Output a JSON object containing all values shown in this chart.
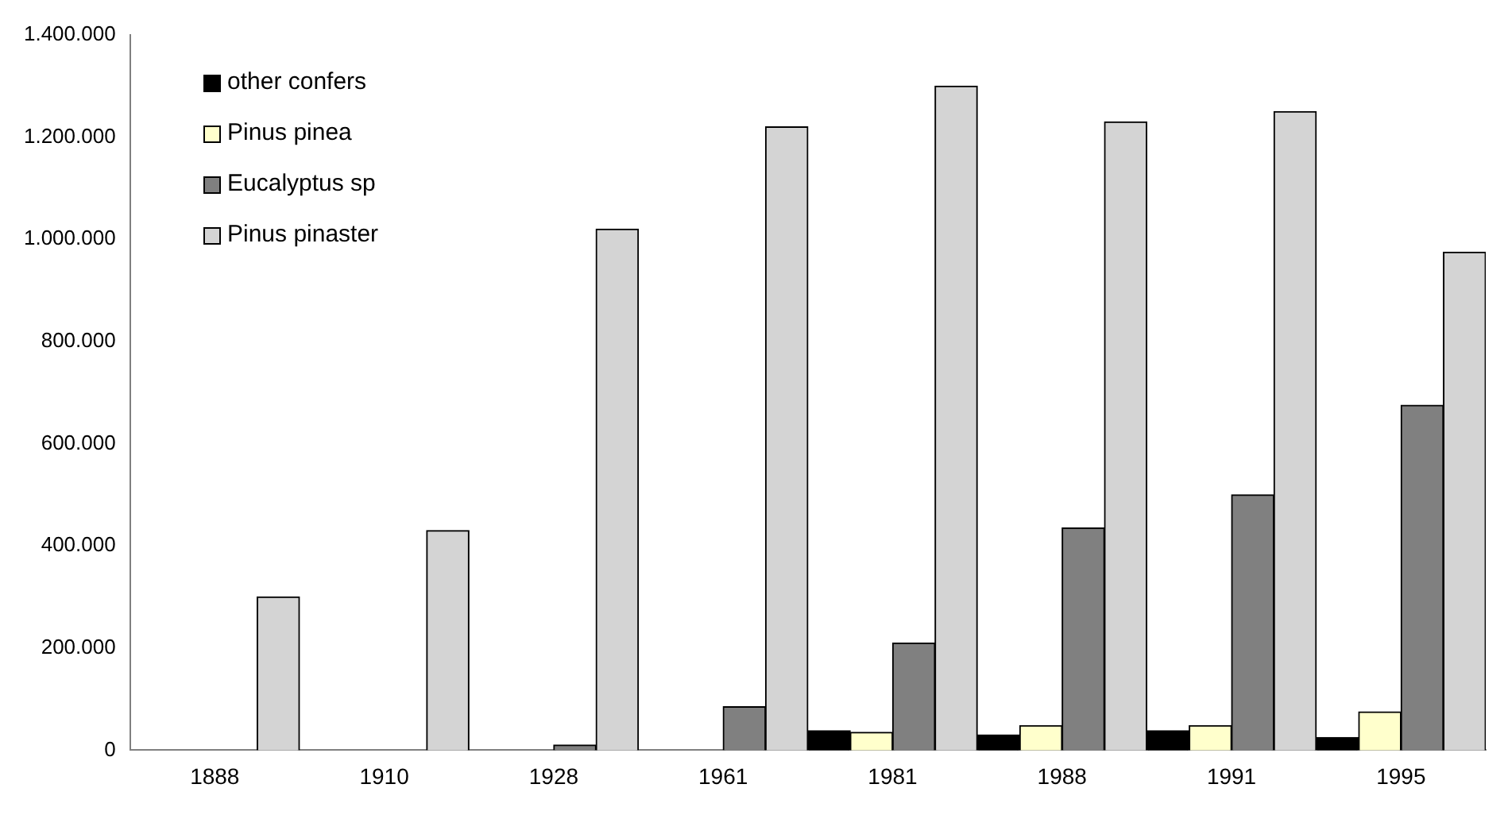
{
  "chart_data": {
    "type": "bar",
    "categories": [
      "1888",
      "1910",
      "1928",
      "1961",
      "1981",
      "1988",
      "1991",
      "1995"
    ],
    "series": [
      {
        "name": "other confers",
        "color": "#000000",
        "values": [
          null,
          null,
          null,
          null,
          38000,
          30000,
          38000,
          25000
        ]
      },
      {
        "name": "Pinus pinea",
        "color": "#ffffcc",
        "values": [
          null,
          null,
          null,
          null,
          35000,
          48000,
          48000,
          75000
        ]
      },
      {
        "name": "Eucalyptus sp",
        "color": "#808080",
        "values": [
          null,
          null,
          10000,
          85000,
          210000,
          435000,
          500000,
          675000
        ]
      },
      {
        "name": "Pinus pinaster",
        "color": "#d4d4d4",
        "values": [
          300000,
          430000,
          1020000,
          1220000,
          1300000,
          1230000,
          1250000,
          975000
        ]
      }
    ],
    "ylim": [
      0,
      1400000
    ],
    "yticks": [
      {
        "value": 0,
        "label": "0"
      },
      {
        "value": 200000,
        "label": "200.000"
      },
      {
        "value": 400000,
        "label": "400.000"
      },
      {
        "value": 600000,
        "label": "600.000"
      },
      {
        "value": 800000,
        "label": "800.000"
      },
      {
        "value": 1000000,
        "label": "1.000.000"
      },
      {
        "value": 1200000,
        "label": "1.200.000"
      },
      {
        "value": 1400000,
        "label": "1.400.000"
      }
    ],
    "grid": false,
    "legend": "top left"
  }
}
